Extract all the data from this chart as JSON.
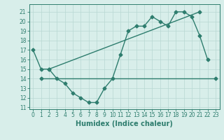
{
  "line1_x": [
    0,
    1,
    2,
    3,
    4,
    5,
    6,
    7,
    8,
    9,
    10,
    11,
    12,
    13,
    14,
    15,
    16,
    17,
    18,
    19,
    20,
    21,
    22
  ],
  "line1_y": [
    17,
    15,
    15,
    14,
    13.5,
    12.5,
    12,
    11.5,
    11.5,
    13,
    14,
    16.5,
    19,
    19.5,
    19.5,
    20.5,
    20,
    19.5,
    21,
    21,
    20.5,
    18.5,
    16
  ],
  "line2_x": [
    1,
    23
  ],
  "line2_y": [
    14,
    14
  ],
  "line3_x": [
    2,
    21
  ],
  "line3_y": [
    15,
    21
  ],
  "line_color": "#2e7d6e",
  "bg_color": "#d8eeea",
  "grid_color": "#b8d8d2",
  "xlabel": "Humidex (Indice chaleur)",
  "xlabel_fontsize": 7,
  "xlim": [
    -0.5,
    23.5
  ],
  "ylim": [
    10.8,
    21.8
  ],
  "yticks": [
    11,
    12,
    13,
    14,
    15,
    16,
    17,
    18,
    19,
    20,
    21
  ],
  "xticks": [
    0,
    1,
    2,
    3,
    4,
    5,
    6,
    7,
    8,
    9,
    10,
    11,
    12,
    13,
    14,
    15,
    16,
    17,
    18,
    19,
    20,
    21,
    22,
    23
  ],
  "marker": "D",
  "markersize": 2.5,
  "linewidth": 1.0
}
